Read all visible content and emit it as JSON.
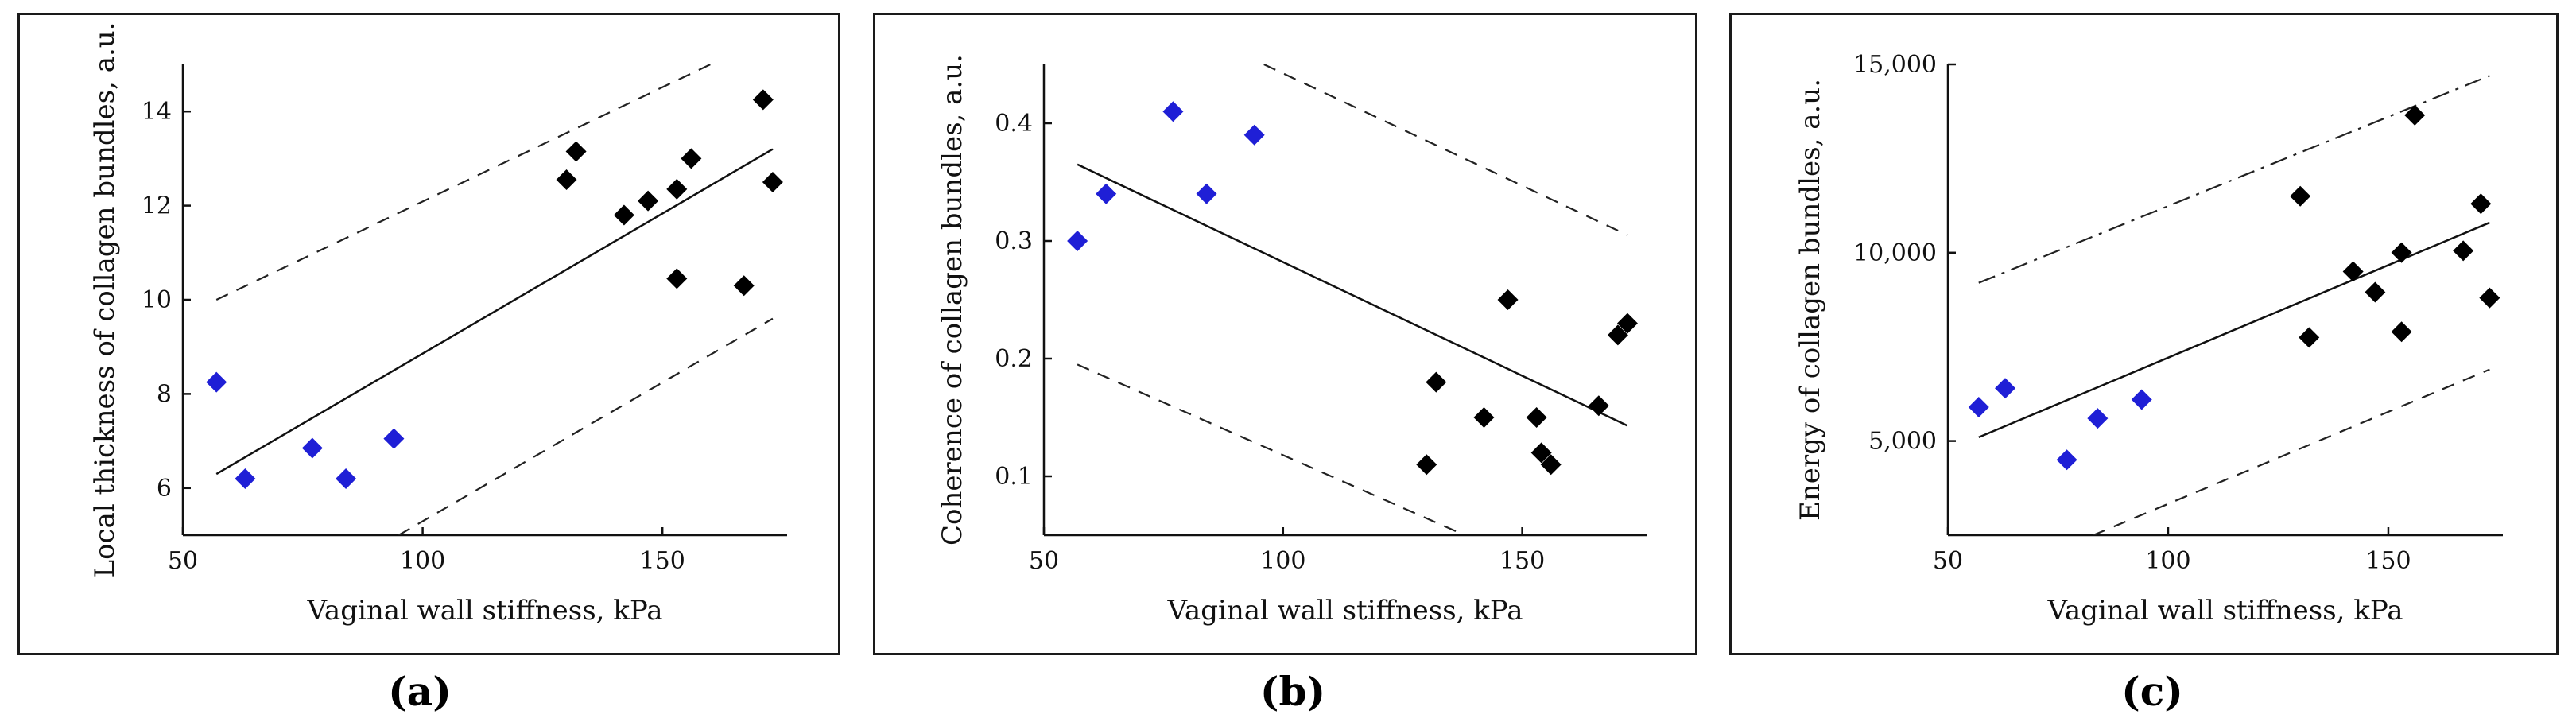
{
  "chart_data": [
    {
      "type": "scatter",
      "panel_label": "(a)",
      "xlabel": "Vaginal wall stiffness, kPa",
      "ylabel": "Local thickness of collagen bundles, a.u.",
      "xlim": [
        50,
        176
      ],
      "ylim": [
        5,
        15
      ],
      "xticks": [
        50,
        100,
        150
      ],
      "yticks": [
        6,
        8,
        10,
        12,
        14
      ],
      "ytick_labels": [
        "6",
        "8",
        "10",
        "12",
        "14"
      ],
      "series": [
        {
          "name": "blue",
          "color": "#1f1fd6",
          "points": [
            [
              57,
              8.25
            ],
            [
              63,
              6.2
            ],
            [
              77,
              6.85
            ],
            [
              84,
              6.2
            ],
            [
              94,
              7.05
            ]
          ]
        },
        {
          "name": "black",
          "color": "#000000",
          "points": [
            [
              130,
              12.55
            ],
            [
              132,
              13.15
            ],
            [
              142,
              11.8
            ],
            [
              147,
              12.1
            ],
            [
              153,
              10.45
            ],
            [
              153,
              12.35
            ],
            [
              156,
              13.0
            ],
            [
              167,
              10.3
            ],
            [
              171,
              14.25
            ],
            [
              173,
              12.5
            ]
          ]
        }
      ],
      "fit_line": [
        [
          57,
          6.3
        ],
        [
          173,
          13.2
        ]
      ],
      "upper_band": {
        "style": "dash",
        "points": [
          [
            57,
            10.0
          ],
          [
            160,
            15.0
          ]
        ]
      },
      "lower_band": {
        "style": "dash",
        "points": [
          [
            95,
            5.0
          ],
          [
            173,
            9.6
          ]
        ]
      }
    },
    {
      "type": "scatter",
      "panel_label": "(b)",
      "xlabel": "Vaginal wall stiffness, kPa",
      "ylabel": "Coherence of collagen bundles, a.u.",
      "xlim": [
        50,
        176
      ],
      "ylim": [
        0.05,
        0.45
      ],
      "xticks": [
        50,
        100,
        150
      ],
      "yticks": [
        0.1,
        0.2,
        0.3,
        0.4
      ],
      "ytick_labels": [
        "0.1",
        "0.2",
        "0.3",
        "0.4"
      ],
      "series": [
        {
          "name": "blue",
          "color": "#1f1fd6",
          "points": [
            [
              57,
              0.3
            ],
            [
              63,
              0.34
            ],
            [
              77,
              0.41
            ],
            [
              84,
              0.34
            ],
            [
              94,
              0.39
            ]
          ]
        },
        {
          "name": "black",
          "color": "#000000",
          "points": [
            [
              130,
              0.11
            ],
            [
              132,
              0.18
            ],
            [
              142,
              0.15
            ],
            [
              147,
              0.25
            ],
            [
              153,
              0.15
            ],
            [
              154,
              0.12
            ],
            [
              156,
              0.11
            ],
            [
              166,
              0.16
            ],
            [
              170,
              0.22
            ],
            [
              172,
              0.23
            ]
          ]
        }
      ],
      "fit_line": [
        [
          57,
          0.365
        ],
        [
          172,
          0.143
        ]
      ],
      "upper_band": {
        "style": "dash",
        "points": [
          [
            96,
            0.45
          ],
          [
            172,
            0.305
          ]
        ]
      },
      "lower_band": {
        "style": "dash",
        "points": [
          [
            57,
            0.195
          ],
          [
            138,
            0.05
          ]
        ]
      }
    },
    {
      "type": "scatter",
      "panel_label": "(c)",
      "xlabel": "Vaginal wall stiffness, kPa",
      "ylabel": "Energy of collagen bundles, a.u.",
      "xlim": [
        50,
        176
      ],
      "ylim": [
        2500,
        15000
      ],
      "xticks": [
        50,
        100,
        150
      ],
      "yticks": [
        5000,
        10000,
        15000
      ],
      "ytick_labels": [
        "5,000",
        "10,000",
        "15,000"
      ],
      "series": [
        {
          "name": "blue",
          "color": "#1f1fd6",
          "points": [
            [
              57,
              5900
            ],
            [
              63,
              6400
            ],
            [
              77,
              4500
            ],
            [
              84,
              5600
            ],
            [
              94,
              6100
            ]
          ]
        },
        {
          "name": "black",
          "color": "#000000",
          "points": [
            [
              130,
              11500
            ],
            [
              132,
              7750
            ],
            [
              142,
              9500
            ],
            [
              147,
              8950
            ],
            [
              153,
              7900
            ],
            [
              153,
              10000
            ],
            [
              156,
              13650
            ],
            [
              167,
              10050
            ],
            [
              171,
              11300
            ],
            [
              173,
              8800
            ]
          ]
        }
      ],
      "fit_line": [
        [
          57,
          5100
        ],
        [
          173,
          10800
        ]
      ],
      "upper_band": {
        "style": "dashdot",
        "points": [
          [
            57,
            9200
          ],
          [
            173,
            14700
          ]
        ]
      },
      "lower_band": {
        "style": "dash",
        "points": [
          [
            83,
            2500
          ],
          [
            173,
            6900
          ]
        ]
      }
    }
  ]
}
